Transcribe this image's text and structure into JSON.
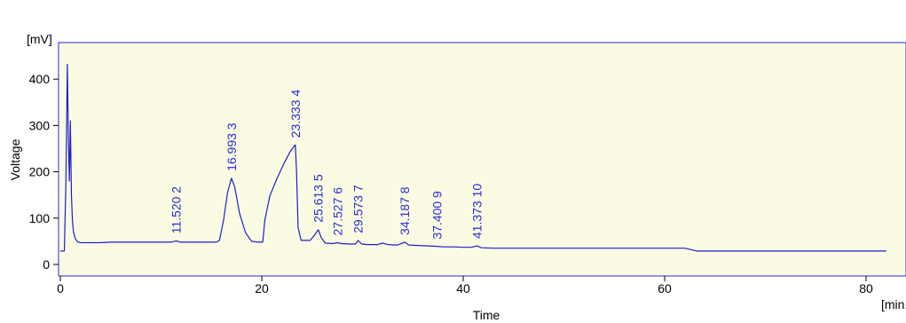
{
  "chart_data": {
    "type": "line",
    "title": "",
    "xlabel": "Time",
    "ylabel": "Voltage",
    "x_unit": "[min.]",
    "y_unit": "[mV]",
    "xlim": [
      0,
      85
    ],
    "ylim": [
      -15,
      480
    ],
    "x_ticks": [
      0,
      20,
      40,
      60,
      80
    ],
    "y_ticks": [
      0,
      100,
      200,
      300,
      400
    ],
    "grid": false,
    "colors": {
      "plot_background": "#fbfbe4",
      "trace": "#1e1ec8",
      "labels": "#2a2ad4",
      "frame": "#000000"
    },
    "series": [
      {
        "x": [
          0,
          0.2,
          0.4,
          0.55,
          0.7,
          0.8,
          0.9,
          1.0,
          1.1,
          1.2,
          1.3,
          1.5,
          1.7,
          2.0,
          2.5,
          3,
          4,
          5,
          6,
          8,
          10,
          11.0,
          11.52,
          11.9,
          12.5,
          14,
          15.5,
          15.8,
          16.2,
          16.6,
          16.99,
          17.3,
          17.8,
          18.4,
          19.0,
          19.6,
          19.9,
          20.1,
          20.3,
          20.8,
          21.5,
          22.2,
          22.8,
          23.1,
          23.33,
          23.45,
          23.6,
          23.9,
          24.3,
          24.8,
          25.2,
          25.61,
          25.9,
          26.3,
          27.0,
          27.53,
          27.9,
          28.8,
          29.3,
          29.57,
          29.9,
          30.5,
          31.5,
          32.0,
          32.5,
          33.5,
          34.187,
          34.6,
          35.5,
          36.5,
          37.4,
          38.0,
          39.0,
          40.0,
          40.8,
          41.373,
          41.8,
          43,
          50,
          55,
          60,
          62.0,
          62.8,
          63.2,
          70,
          80,
          82
        ],
        "y": [
          29,
          29,
          29,
          170,
          432,
          270,
          180,
          310,
          150,
          95,
          70,
          55,
          49,
          47,
          47,
          47,
          47,
          48,
          48,
          48,
          48,
          48,
          51,
          48,
          48,
          48,
          48,
          52,
          95,
          155,
          186,
          168,
          110,
          68,
          50,
          48,
          48,
          48,
          95,
          148,
          185,
          218,
          243,
          252,
          258,
          200,
          80,
          52,
          52,
          52,
          62,
          75,
          58,
          46,
          45,
          47,
          45,
          44,
          44,
          52,
          44,
          43,
          43,
          46,
          43,
          42,
          48,
          42,
          41,
          40,
          39,
          38,
          38,
          37,
          37,
          40,
          36,
          35,
          35,
          35,
          35,
          35,
          31,
          29,
          29,
          29,
          29
        ]
      }
    ],
    "peaks": [
      {
        "time": 11.52,
        "y": 51,
        "label": "11.520  2"
      },
      {
        "time": 16.993,
        "y": 186,
        "label": "16.993  3"
      },
      {
        "time": 23.333,
        "y": 258,
        "label": "23.333  4"
      },
      {
        "time": 25.613,
        "y": 75,
        "label": "25.613  5"
      },
      {
        "time": 27.527,
        "y": 47,
        "label": "27.527  6"
      },
      {
        "time": 29.573,
        "y": 52,
        "label": "29.573  7"
      },
      {
        "time": 34.187,
        "y": 48,
        "label": "34.187  8"
      },
      {
        "time": 37.4,
        "y": 39,
        "label": "37.400  9"
      },
      {
        "time": 41.373,
        "y": 40,
        "label": "41.373  10"
      }
    ]
  }
}
